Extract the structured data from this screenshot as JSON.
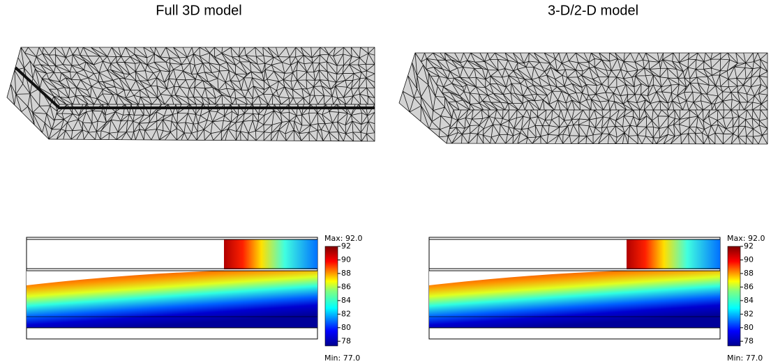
{
  "panels": [
    {
      "title": "Full 3D model",
      "colorbar": {
        "max_label": "Max: 92.0",
        "min_label": "Min: 77.0",
        "range": [
          77,
          92
        ],
        "ticks": [
          92,
          90,
          88,
          86,
          84,
          82,
          80,
          78
        ]
      }
    },
    {
      "title": "3-D/2-D model",
      "colorbar": {
        "max_label": "Max: 92.0",
        "min_label": "Min: 77.0",
        "range": [
          77,
          92
        ],
        "ticks": [
          92,
          90,
          88,
          86,
          84,
          82,
          80,
          78
        ]
      }
    }
  ]
}
